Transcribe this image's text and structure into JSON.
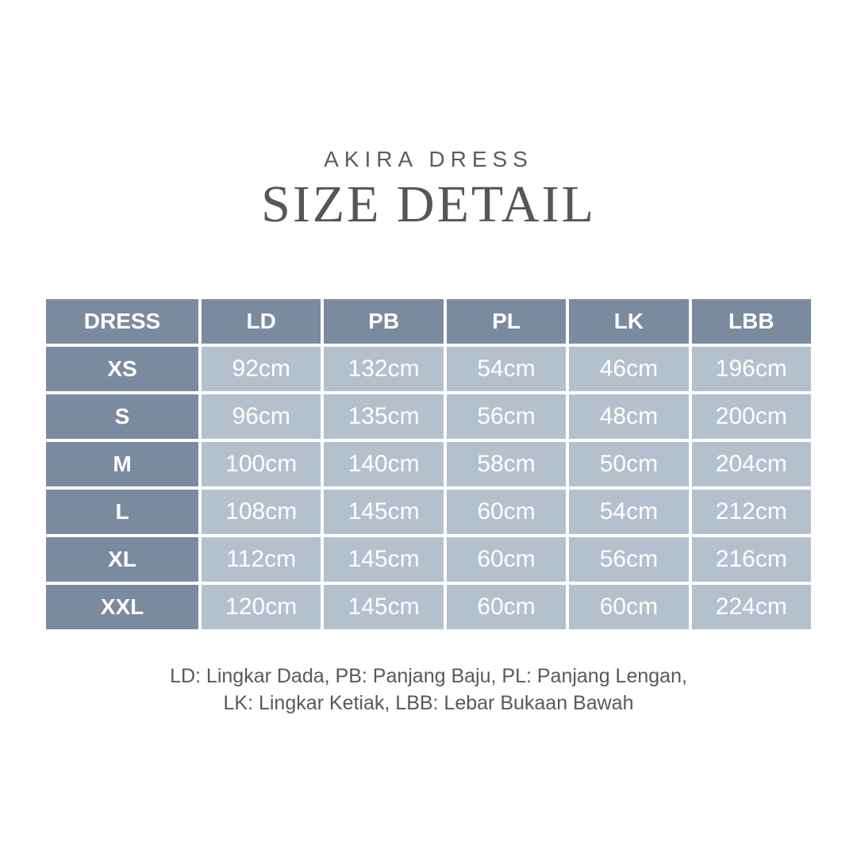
{
  "page": {
    "subtitle": "AKIRA DRESS",
    "title": "SIZE DETAIL"
  },
  "colors": {
    "page_bg": "#ffffff",
    "header_cell_bg": "#7b8b9f",
    "data_cell_bg": "#b5c0cd",
    "grid_line": "#ffffff",
    "title_text": "#55565a",
    "cell_text": "#ffffff"
  },
  "table": {
    "columns": [
      "DRESS",
      "LD",
      "PB",
      "PL",
      "LK",
      "LBB"
    ],
    "rows": [
      {
        "size": "XS",
        "values": [
          "92cm",
          "132cm",
          "54cm",
          "46cm",
          "196cm"
        ]
      },
      {
        "size": "S",
        "values": [
          "96cm",
          "135cm",
          "56cm",
          "48cm",
          "200cm"
        ]
      },
      {
        "size": "M",
        "values": [
          "100cm",
          "140cm",
          "58cm",
          "50cm",
          "204cm"
        ]
      },
      {
        "size": "L",
        "values": [
          "108cm",
          "145cm",
          "60cm",
          "54cm",
          "212cm"
        ]
      },
      {
        "size": "XL",
        "values": [
          "112cm",
          "145cm",
          "60cm",
          "56cm",
          "216cm"
        ]
      },
      {
        "size": "XXL",
        "values": [
          "120cm",
          "145cm",
          "60cm",
          "60cm",
          "224cm"
        ]
      }
    ]
  },
  "legend": {
    "line1": "LD: Lingkar Dada, PB: Panjang Baju, PL: Panjang Lengan,",
    "line2": "LK: Lingkar Ketiak, LBB: Lebar Bukaan Bawah"
  }
}
